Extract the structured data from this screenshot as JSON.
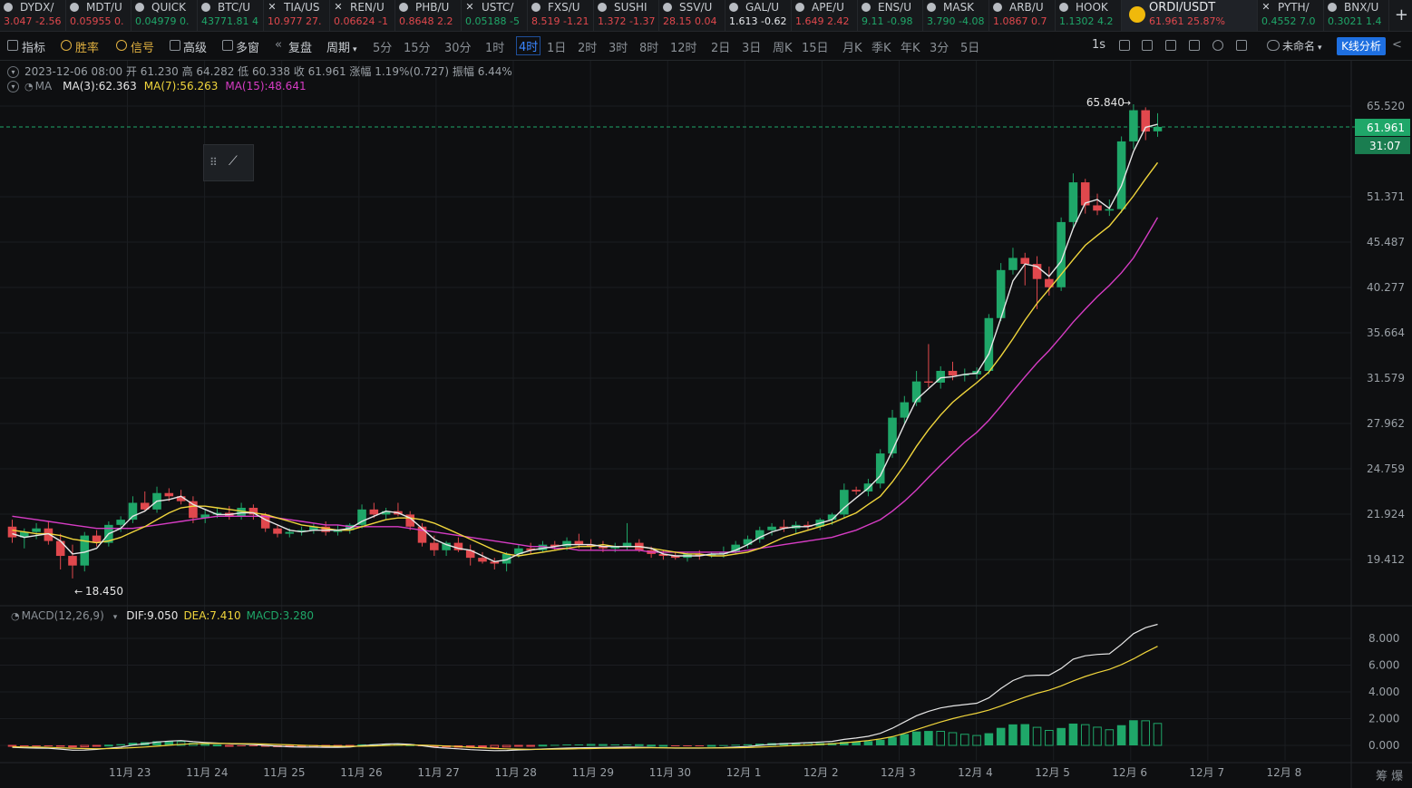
{
  "tickers": [
    {
      "sym": "DYDX/",
      "q": "3.047 -2.56",
      "dir": "down",
      "icon": "coin-icon",
      "w": 73
    },
    {
      "sym": "MDT/U",
      "q": "0.05955 0.",
      "dir": "down",
      "icon": "coin-icon",
      "w": 72
    },
    {
      "sym": "QUICK",
      "q": "0.04979 0.",
      "dir": "up",
      "icon": "coin-icon",
      "w": 73
    },
    {
      "sym": "BTC/U",
      "q": "43771.81 4",
      "dir": "up",
      "icon": "coin-icon",
      "w": 73
    },
    {
      "sym": "TIA/US",
      "q": "10.977 27.",
      "dir": "down",
      "icon": "close-icon",
      "w": 73
    },
    {
      "sym": "REN/U",
      "q": "0.06624 -1",
      "dir": "down",
      "icon": "close-icon",
      "w": 72
    },
    {
      "sym": "PHB/U",
      "q": "0.8648 2.2",
      "dir": "down",
      "icon": "coin-icon",
      "w": 73
    },
    {
      "sym": "USTC/",
      "q": "0.05188 -5",
      "dir": "up",
      "icon": "close-icon",
      "w": 73
    },
    {
      "sym": "FXS/U",
      "q": "8.519 -1.21",
      "dir": "down",
      "icon": "coin-icon",
      "w": 73
    },
    {
      "sym": "SUSHI",
      "q": "1.372 -1.37",
      "dir": "down",
      "icon": "coin-icon",
      "w": 72
    },
    {
      "sym": "SSV/U",
      "q": "28.15 0.04",
      "dir": "down",
      "icon": "coin-icon",
      "w": 73
    },
    {
      "sym": "GAL/U",
      "q": "1.613 -0.62",
      "dir": "flat",
      "icon": "coin-icon",
      "w": 73
    },
    {
      "sym": "APE/U",
      "q": "1.649 2.42",
      "dir": "down",
      "icon": "coin-icon",
      "w": 73
    },
    {
      "sym": "ENS/U",
      "q": "9.11 -0.98",
      "dir": "up",
      "icon": "coin-icon",
      "w": 72
    },
    {
      "sym": "MASK",
      "q": "3.790 -4.08",
      "dir": "up",
      "icon": "coin-icon",
      "w": 73
    },
    {
      "sym": "ARB/U",
      "q": "1.0867 0.7",
      "dir": "down",
      "icon": "coin-icon",
      "w": 73
    },
    {
      "sym": "HOOK",
      "q": "1.1302 4.2",
      "dir": "up",
      "icon": "coin-icon",
      "w": 73
    },
    {
      "sym": "ORDI/USDT",
      "q": "61.961  25.87%",
      "dir": "down",
      "icon": "ordi-coin-icon",
      "w": 150,
      "active": true
    },
    {
      "sym": "PYTH/",
      "q": "0.4552 7.0",
      "dir": "up",
      "icon": "close-icon",
      "w": 73
    },
    {
      "sym": "BNX/U",
      "q": "0.3021 1.4",
      "dir": "up",
      "icon": "coin-icon",
      "w": 72
    }
  ],
  "toolbar": {
    "items": [
      "指标",
      "胜率",
      "信号",
      "高级",
      "多窗",
      "复盘",
      "周期"
    ],
    "periods": [
      "5分",
      "15分",
      "30分",
      "1时",
      "4时",
      "1日",
      "2时",
      "3时",
      "8时",
      "12时",
      "2日",
      "3日",
      "周K",
      "15日",
      "月K",
      "季K",
      "年K",
      "3分",
      "5日"
    ],
    "selected_period": "4时",
    "right": [
      "1s",
      "未命名"
    ],
    "kline_btn": "K线分析"
  },
  "legend": {
    "ohlc": "2023-12-06 08:00  开 61.230  高 64.282  低 60.338  收 61.961  涨幅 1.19%(0.727)  振幅 6.44%",
    "ma_label": "MA",
    "ma3": "MA(3):62.363",
    "ma7": "MA(7):56.263",
    "ma15": "MA(15):48.641",
    "macd_label": "MACD(12,26,9)",
    "dif": "DIF:9.050",
    "dea": "DEA:7.410",
    "macd": "MACD:3.280"
  },
  "colors": {
    "up": "#1fa769",
    "down": "#e0484d",
    "ma3": "#e6e6e6",
    "ma7": "#f0d53c",
    "ma15": "#d63cc4",
    "accent": "#1e6fe0"
  },
  "chart_data": {
    "type": "candlestick",
    "y_ticks": [
      65.52,
      51.371,
      45.487,
      40.277,
      35.664,
      31.579,
      27.962,
      24.759,
      21.924,
      19.412
    ],
    "y_scale": "log",
    "last_price": "61.961",
    "countdown": "31:07",
    "high_label": "65.840",
    "low_label": "18.450",
    "x_labels": [
      "11月 23",
      "11月 24",
      "11月 25",
      "11月 26",
      "11月 27",
      "11月 28",
      "11月 29",
      "11月 30",
      "12月 1",
      "12月 2",
      "12月 3",
      "12月 4",
      "12月 5",
      "12月 6",
      "12月 7",
      "12月 8"
    ],
    "macd_ticks": [
      8.0,
      6.0,
      4.0,
      2.0,
      0.0
    ],
    "candles": [
      [
        21.2,
        21.6,
        20.3,
        20.6
      ],
      [
        20.6,
        21.1,
        20.0,
        20.9
      ],
      [
        20.9,
        21.4,
        20.5,
        21.1
      ],
      [
        21.1,
        21.5,
        20.2,
        20.4
      ],
      [
        20.4,
        20.8,
        18.9,
        19.6
      ],
      [
        19.6,
        20.2,
        18.45,
        19.1
      ],
      [
        19.1,
        20.9,
        18.8,
        20.7
      ],
      [
        20.7,
        21.0,
        20.1,
        20.3
      ],
      [
        20.3,
        21.5,
        20.1,
        21.3
      ],
      [
        21.3,
        21.8,
        20.9,
        21.6
      ],
      [
        21.6,
        23.0,
        21.4,
        22.6
      ],
      [
        22.6,
        23.3,
        22.1,
        22.2
      ],
      [
        22.2,
        23.6,
        22.0,
        23.2
      ],
      [
        23.2,
        23.5,
        22.7,
        23.0
      ],
      [
        23.0,
        23.4,
        22.5,
        22.7
      ],
      [
        22.7,
        23.0,
        21.4,
        21.7
      ],
      [
        21.7,
        22.2,
        21.4,
        21.9
      ],
      [
        21.9,
        22.3,
        21.7,
        22.0
      ],
      [
        22.0,
        22.4,
        21.6,
        21.8
      ],
      [
        21.8,
        22.6,
        21.6,
        22.3
      ],
      [
        22.3,
        22.5,
        21.6,
        21.9
      ],
      [
        21.9,
        22.0,
        20.9,
        21.1
      ],
      [
        21.1,
        21.3,
        20.6,
        20.8
      ],
      [
        20.8,
        21.1,
        20.6,
        20.9
      ],
      [
        20.9,
        21.2,
        20.7,
        21.0
      ],
      [
        21.0,
        21.4,
        20.8,
        21.2
      ],
      [
        21.2,
        21.5,
        20.7,
        20.9
      ],
      [
        20.9,
        21.3,
        20.7,
        21.0
      ],
      [
        21.0,
        21.4,
        20.8,
        21.3
      ],
      [
        21.3,
        22.5,
        21.1,
        22.2
      ],
      [
        22.2,
        22.6,
        21.7,
        21.9
      ],
      [
        21.9,
        22.3,
        21.6,
        22.1
      ],
      [
        22.1,
        22.6,
        21.8,
        21.9
      ],
      [
        21.9,
        22.1,
        21.0,
        21.2
      ],
      [
        21.2,
        21.4,
        20.1,
        20.3
      ],
      [
        20.3,
        20.7,
        19.6,
        19.9
      ],
      [
        19.9,
        20.4,
        19.6,
        20.3
      ],
      [
        20.3,
        20.6,
        19.8,
        19.9
      ],
      [
        19.9,
        20.2,
        19.1,
        19.5
      ],
      [
        19.5,
        19.8,
        19.2,
        19.3
      ],
      [
        19.3,
        19.5,
        18.9,
        19.2
      ],
      [
        19.2,
        19.8,
        18.8,
        19.7
      ],
      [
        19.7,
        20.2,
        19.5,
        20.0
      ],
      [
        20.0,
        20.3,
        19.7,
        19.9
      ],
      [
        19.9,
        20.4,
        19.8,
        20.2
      ],
      [
        20.2,
        20.4,
        19.9,
        20.1
      ],
      [
        20.1,
        20.6,
        19.9,
        20.4
      ],
      [
        20.4,
        20.8,
        20.0,
        20.2
      ],
      [
        20.2,
        20.5,
        19.9,
        20.1
      ],
      [
        20.1,
        20.4,
        19.8,
        20.0
      ],
      [
        20.0,
        20.3,
        19.8,
        20.1
      ],
      [
        20.1,
        21.4,
        19.9,
        20.3
      ],
      [
        20.3,
        20.5,
        19.8,
        19.9
      ],
      [
        19.9,
        20.1,
        19.5,
        19.7
      ],
      [
        19.7,
        19.9,
        19.4,
        19.6
      ],
      [
        19.6,
        19.8,
        19.4,
        19.5
      ],
      [
        19.5,
        19.8,
        19.3,
        19.7
      ],
      [
        19.7,
        19.9,
        19.4,
        19.6
      ],
      [
        19.6,
        19.8,
        19.5,
        19.7
      ],
      [
        19.7,
        20.1,
        19.5,
        19.8
      ],
      [
        19.8,
        20.4,
        19.7,
        20.2
      ],
      [
        20.2,
        20.7,
        20.0,
        20.5
      ],
      [
        20.5,
        21.2,
        20.3,
        21.0
      ],
      [
        21.0,
        21.4,
        20.7,
        21.2
      ],
      [
        21.2,
        21.6,
        20.9,
        21.1
      ],
      [
        21.1,
        21.5,
        20.8,
        21.3
      ],
      [
        21.3,
        21.5,
        21.0,
        21.2
      ],
      [
        21.2,
        21.7,
        21.0,
        21.6
      ],
      [
        21.6,
        22.0,
        21.3,
        21.9
      ],
      [
        21.9,
        23.8,
        21.7,
        23.4
      ],
      [
        23.4,
        23.6,
        23.1,
        23.3
      ],
      [
        23.3,
        24.1,
        23.0,
        23.8
      ],
      [
        23.8,
        26.1,
        23.5,
        25.8
      ],
      [
        25.8,
        29.0,
        25.5,
        28.4
      ],
      [
        28.4,
        30.1,
        28.0,
        29.6
      ],
      [
        29.6,
        32.2,
        29.3,
        31.3
      ],
      [
        31.3,
        34.6,
        30.8,
        31.2
      ],
      [
        31.2,
        32.6,
        30.7,
        32.2
      ],
      [
        32.2,
        33.0,
        31.4,
        31.8
      ],
      [
        31.8,
        32.4,
        31.3,
        31.9
      ],
      [
        31.9,
        32.5,
        31.5,
        32.2
      ],
      [
        32.2,
        37.5,
        31.9,
        37.1
      ],
      [
        37.1,
        43.0,
        36.8,
        42.2
      ],
      [
        42.2,
        44.8,
        41.7,
        43.6
      ],
      [
        43.6,
        44.2,
        40.5,
        42.9
      ],
      [
        42.9,
        43.8,
        38.0,
        41.2
      ],
      [
        41.2,
        42.6,
        39.4,
        40.3
      ],
      [
        40.3,
        48.6,
        39.9,
        48.0
      ],
      [
        48.0,
        54.7,
        47.3,
        53.4
      ],
      [
        53.4,
        53.9,
        49.1,
        50.2
      ],
      [
        50.2,
        51.8,
        48.9,
        49.5
      ],
      [
        49.5,
        51.0,
        48.8,
        49.7
      ],
      [
        49.7,
        60.4,
        49.2,
        59.6
      ],
      [
        59.6,
        65.84,
        58.4,
        64.8
      ],
      [
        64.8,
        65.3,
        59.8,
        61.2
      ],
      [
        61.23,
        64.282,
        60.338,
        61.961
      ]
    ],
    "ma3": [
      20.8,
      20.6,
      20.7,
      20.8,
      20.4,
      19.7,
      19.8,
      20.0,
      20.8,
      21.1,
      21.8,
      22.1,
      22.7,
      22.8,
      23.0,
      22.5,
      22.2,
      21.9,
      21.9,
      22.0,
      22.0,
      21.6,
      21.3,
      21.0,
      20.9,
      21.0,
      21.0,
      21.0,
      21.1,
      21.5,
      21.8,
      22.1,
      22.0,
      21.7,
      21.1,
      20.5,
      20.2,
      20.0,
      19.9,
      19.6,
      19.3,
      19.4,
      19.7,
      19.9,
      20.0,
      20.1,
      20.2,
      20.2,
      20.2,
      20.1,
      20.1,
      20.1,
      20.1,
      20.0,
      19.7,
      19.6,
      19.6,
      19.6,
      19.7,
      19.7,
      19.9,
      20.2,
      20.6,
      20.9,
      21.1,
      21.2,
      21.2,
      21.4,
      21.6,
      22.3,
      22.9,
      23.5,
      24.3,
      26.0,
      27.9,
      29.8,
      30.7,
      31.6,
      31.7,
      31.9,
      32.0,
      33.7,
      37.1,
      41.0,
      42.9,
      42.6,
      41.5,
      43.2,
      47.2,
      50.5,
      51.0,
      49.8,
      52.9,
      58.0,
      61.9,
      62.4
    ],
    "ma7": [
      21.0,
      20.9,
      20.8,
      20.8,
      20.7,
      20.5,
      20.4,
      20.3,
      20.4,
      20.6,
      20.9,
      21.2,
      21.6,
      22.0,
      22.3,
      22.4,
      22.4,
      22.3,
      22.2,
      22.1,
      22.0,
      21.9,
      21.7,
      21.5,
      21.3,
      21.2,
      21.1,
      21.0,
      21.0,
      21.2,
      21.4,
      21.6,
      21.7,
      21.7,
      21.6,
      21.4,
      21.1,
      20.8,
      20.5,
      20.2,
      19.9,
      19.7,
      19.6,
      19.7,
      19.8,
      19.9,
      20.0,
      20.1,
      20.1,
      20.2,
      20.1,
      20.1,
      20.1,
      20.0,
      19.9,
      19.8,
      19.7,
      19.7,
      19.6,
      19.6,
      19.7,
      19.8,
      20.0,
      20.3,
      20.6,
      20.8,
      21.0,
      21.2,
      21.4,
      21.7,
      22.0,
      22.5,
      23.0,
      23.9,
      25.0,
      26.3,
      27.5,
      28.6,
      29.6,
      30.4,
      31.2,
      32.1,
      33.5,
      35.1,
      36.9,
      38.6,
      40.1,
      41.7,
      43.4,
      45.1,
      46.3,
      47.5,
      49.4,
      51.5,
      53.9,
      56.3
    ],
    "ma15": [
      21.8,
      21.7,
      21.6,
      21.5,
      21.4,
      21.3,
      21.2,
      21.1,
      21.1,
      21.1,
      21.1,
      21.2,
      21.3,
      21.4,
      21.5,
      21.6,
      21.7,
      21.8,
      21.8,
      21.8,
      21.8,
      21.8,
      21.7,
      21.6,
      21.5,
      21.4,
      21.3,
      21.3,
      21.2,
      21.2,
      21.2,
      21.2,
      21.2,
      21.1,
      21.0,
      20.9,
      20.8,
      20.7,
      20.6,
      20.5,
      20.4,
      20.3,
      20.2,
      20.1,
      20.1,
      20.0,
      20.0,
      19.9,
      19.9,
      19.9,
      19.9,
      19.9,
      19.9,
      19.8,
      19.8,
      19.8,
      19.8,
      19.8,
      19.8,
      19.8,
      19.8,
      19.9,
      20.0,
      20.1,
      20.2,
      20.3,
      20.4,
      20.5,
      20.6,
      20.8,
      21.0,
      21.3,
      21.6,
      22.1,
      22.7,
      23.4,
      24.2,
      25.0,
      25.8,
      26.6,
      27.3,
      28.2,
      29.3,
      30.5,
      31.7,
      32.9,
      34.0,
      35.3,
      36.7,
      38.0,
      39.3,
      40.5,
      41.9,
      43.6,
      46.0,
      48.6
    ],
    "macd_dif": [
      -0.15,
      -0.18,
      -0.2,
      -0.22,
      -0.28,
      -0.36,
      -0.35,
      -0.3,
      -0.22,
      -0.13,
      0.02,
      0.12,
      0.25,
      0.32,
      0.36,
      0.28,
      0.22,
      0.17,
      0.12,
      0.1,
      0.07,
      0.0,
      -0.06,
      -0.1,
      -0.13,
      -0.13,
      -0.14,
      -0.14,
      -0.12,
      -0.02,
      0.05,
      0.1,
      0.12,
      0.08,
      -0.03,
      -0.14,
      -0.2,
      -0.26,
      -0.32,
      -0.36,
      -0.39,
      -0.38,
      -0.34,
      -0.31,
      -0.27,
      -0.24,
      -0.2,
      -0.18,
      -0.17,
      -0.16,
      -0.14,
      -0.13,
      -0.14,
      -0.16,
      -0.18,
      -0.2,
      -0.2,
      -0.2,
      -0.19,
      -0.17,
      -0.13,
      -0.08,
      0.0,
      0.08,
      0.13,
      0.17,
      0.2,
      0.25,
      0.3,
      0.45,
      0.55,
      0.68,
      0.9,
      1.28,
      1.75,
      2.22,
      2.55,
      2.8,
      2.95,
      3.05,
      3.15,
      3.55,
      4.25,
      4.85,
      5.2,
      5.25,
      5.25,
      5.75,
      6.45,
      6.7,
      6.8,
      6.85,
      7.55,
      8.35,
      8.8,
      9.05
    ],
    "macd_dea": [
      -0.1,
      -0.12,
      -0.13,
      -0.15,
      -0.18,
      -0.21,
      -0.24,
      -0.25,
      -0.24,
      -0.22,
      -0.17,
      -0.12,
      -0.06,
      0.01,
      0.08,
      0.12,
      0.14,
      0.14,
      0.14,
      0.13,
      0.12,
      0.1,
      0.07,
      0.04,
      0.01,
      -0.02,
      -0.04,
      -0.06,
      -0.07,
      -0.06,
      -0.04,
      -0.01,
      0.02,
      0.03,
      0.02,
      -0.01,
      -0.05,
      -0.09,
      -0.14,
      -0.18,
      -0.23,
      -0.26,
      -0.28,
      -0.29,
      -0.29,
      -0.28,
      -0.27,
      -0.25,
      -0.24,
      -0.22,
      -0.21,
      -0.2,
      -0.19,
      -0.18,
      -0.18,
      -0.19,
      -0.19,
      -0.19,
      -0.19,
      -0.19,
      -0.18,
      -0.16,
      -0.13,
      -0.09,
      -0.05,
      -0.01,
      0.03,
      0.07,
      0.12,
      0.19,
      0.27,
      0.36,
      0.48,
      0.65,
      0.9,
      1.18,
      1.47,
      1.75,
      2.0,
      2.22,
      2.41,
      2.64,
      2.94,
      3.28,
      3.61,
      3.9,
      4.13,
      4.45,
      4.82,
      5.15,
      5.44,
      5.68,
      6.04,
      6.47,
      6.96,
      7.41
    ]
  }
}
